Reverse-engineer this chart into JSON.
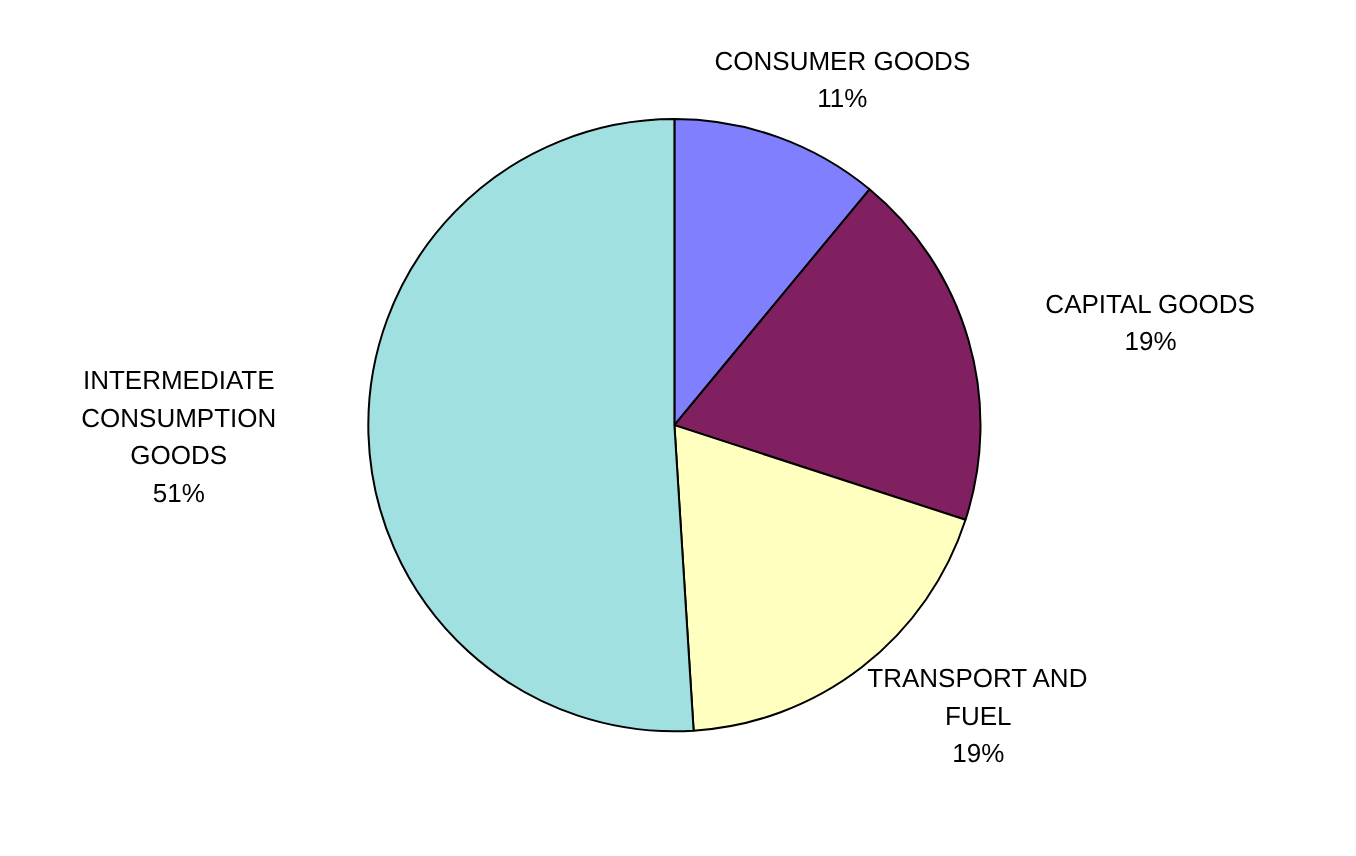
{
  "chart_data": {
    "type": "pie",
    "categories": [
      "CONSUMER GOODS",
      "CAPITAL GOODS",
      "TRANSPORT AND\nFUEL",
      "INTERMEDIATE\nCONSUMPTION\nGOODS"
    ],
    "values": [
      11,
      19,
      19,
      51
    ],
    "value_labels": [
      "11%",
      "19%",
      "19%",
      "51%"
    ],
    "colors": [
      "#8080ff",
      "#802060",
      "#ffffc0",
      "#a0e0e0"
    ]
  }
}
